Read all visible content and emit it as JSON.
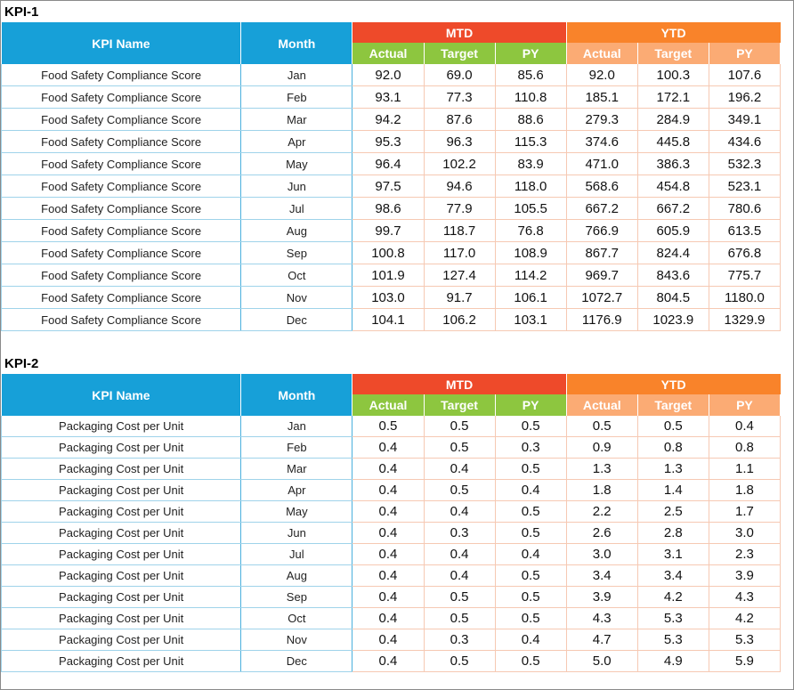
{
  "kpis": [
    {
      "title": "KPI-1",
      "headers": {
        "kpi_name": "KPI Name",
        "month": "Month",
        "mtd": "MTD",
        "ytd": "YTD",
        "actual": "Actual",
        "target": "Target",
        "py": "PY"
      },
      "rows": [
        {
          "name": "Food Safety Compliance Score",
          "month": "Jan",
          "mtd_actual": "92.0",
          "mtd_target": "69.0",
          "mtd_py": "85.6",
          "ytd_actual": "92.0",
          "ytd_target": "100.3",
          "ytd_py": "107.6"
        },
        {
          "name": "Food Safety Compliance Score",
          "month": "Feb",
          "mtd_actual": "93.1",
          "mtd_target": "77.3",
          "mtd_py": "110.8",
          "ytd_actual": "185.1",
          "ytd_target": "172.1",
          "ytd_py": "196.2"
        },
        {
          "name": "Food Safety Compliance Score",
          "month": "Mar",
          "mtd_actual": "94.2",
          "mtd_target": "87.6",
          "mtd_py": "88.6",
          "ytd_actual": "279.3",
          "ytd_target": "284.9",
          "ytd_py": "349.1"
        },
        {
          "name": "Food Safety Compliance Score",
          "month": "Apr",
          "mtd_actual": "95.3",
          "mtd_target": "96.3",
          "mtd_py": "115.3",
          "ytd_actual": "374.6",
          "ytd_target": "445.8",
          "ytd_py": "434.6"
        },
        {
          "name": "Food Safety Compliance Score",
          "month": "May",
          "mtd_actual": "96.4",
          "mtd_target": "102.2",
          "mtd_py": "83.9",
          "ytd_actual": "471.0",
          "ytd_target": "386.3",
          "ytd_py": "532.3"
        },
        {
          "name": "Food Safety Compliance Score",
          "month": "Jun",
          "mtd_actual": "97.5",
          "mtd_target": "94.6",
          "mtd_py": "118.0",
          "ytd_actual": "568.6",
          "ytd_target": "454.8",
          "ytd_py": "523.1"
        },
        {
          "name": "Food Safety Compliance Score",
          "month": "Jul",
          "mtd_actual": "98.6",
          "mtd_target": "77.9",
          "mtd_py": "105.5",
          "ytd_actual": "667.2",
          "ytd_target": "667.2",
          "ytd_py": "780.6"
        },
        {
          "name": "Food Safety Compliance Score",
          "month": "Aug",
          "mtd_actual": "99.7",
          "mtd_target": "118.7",
          "mtd_py": "76.8",
          "ytd_actual": "766.9",
          "ytd_target": "605.9",
          "ytd_py": "613.5"
        },
        {
          "name": "Food Safety Compliance Score",
          "month": "Sep",
          "mtd_actual": "100.8",
          "mtd_target": "117.0",
          "mtd_py": "108.9",
          "ytd_actual": "867.7",
          "ytd_target": "824.4",
          "ytd_py": "676.8"
        },
        {
          "name": "Food Safety Compliance Score",
          "month": "Oct",
          "mtd_actual": "101.9",
          "mtd_target": "127.4",
          "mtd_py": "114.2",
          "ytd_actual": "969.7",
          "ytd_target": "843.6",
          "ytd_py": "775.7"
        },
        {
          "name": "Food Safety Compliance Score",
          "month": "Nov",
          "mtd_actual": "103.0",
          "mtd_target": "91.7",
          "mtd_py": "106.1",
          "ytd_actual": "1072.7",
          "ytd_target": "804.5",
          "ytd_py": "1180.0"
        },
        {
          "name": "Food Safety Compliance Score",
          "month": "Dec",
          "mtd_actual": "104.1",
          "mtd_target": "106.2",
          "mtd_py": "103.1",
          "ytd_actual": "1176.9",
          "ytd_target": "1023.9",
          "ytd_py": "1329.9"
        }
      ]
    },
    {
      "title": "KPI-2",
      "headers": {
        "kpi_name": "KPI Name",
        "month": "Month",
        "mtd": "MTD",
        "ytd": "YTD",
        "actual": "Actual",
        "target": "Target",
        "py": "PY"
      },
      "rows": [
        {
          "name": "Packaging Cost per Unit",
          "month": "Jan",
          "mtd_actual": "0.5",
          "mtd_target": "0.5",
          "mtd_py": "0.5",
          "ytd_actual": "0.5",
          "ytd_target": "0.5",
          "ytd_py": "0.4"
        },
        {
          "name": "Packaging Cost per Unit",
          "month": "Feb",
          "mtd_actual": "0.4",
          "mtd_target": "0.5",
          "mtd_py": "0.3",
          "ytd_actual": "0.9",
          "ytd_target": "0.8",
          "ytd_py": "0.8"
        },
        {
          "name": "Packaging Cost per Unit",
          "month": "Mar",
          "mtd_actual": "0.4",
          "mtd_target": "0.4",
          "mtd_py": "0.5",
          "ytd_actual": "1.3",
          "ytd_target": "1.3",
          "ytd_py": "1.1"
        },
        {
          "name": "Packaging Cost per Unit",
          "month": "Apr",
          "mtd_actual": "0.4",
          "mtd_target": "0.5",
          "mtd_py": "0.4",
          "ytd_actual": "1.8",
          "ytd_target": "1.4",
          "ytd_py": "1.8"
        },
        {
          "name": "Packaging Cost per Unit",
          "month": "May",
          "mtd_actual": "0.4",
          "mtd_target": "0.4",
          "mtd_py": "0.5",
          "ytd_actual": "2.2",
          "ytd_target": "2.5",
          "ytd_py": "1.7"
        },
        {
          "name": "Packaging Cost per Unit",
          "month": "Jun",
          "mtd_actual": "0.4",
          "mtd_target": "0.3",
          "mtd_py": "0.5",
          "ytd_actual": "2.6",
          "ytd_target": "2.8",
          "ytd_py": "3.0"
        },
        {
          "name": "Packaging Cost per Unit",
          "month": "Jul",
          "mtd_actual": "0.4",
          "mtd_target": "0.4",
          "mtd_py": "0.4",
          "ytd_actual": "3.0",
          "ytd_target": "3.1",
          "ytd_py": "2.3"
        },
        {
          "name": "Packaging Cost per Unit",
          "month": "Aug",
          "mtd_actual": "0.4",
          "mtd_target": "0.4",
          "mtd_py": "0.5",
          "ytd_actual": "3.4",
          "ytd_target": "3.4",
          "ytd_py": "3.9"
        },
        {
          "name": "Packaging Cost per Unit",
          "month": "Sep",
          "mtd_actual": "0.4",
          "mtd_target": "0.5",
          "mtd_py": "0.5",
          "ytd_actual": "3.9",
          "ytd_target": "4.2",
          "ytd_py": "4.3"
        },
        {
          "name": "Packaging Cost per Unit",
          "month": "Oct",
          "mtd_actual": "0.4",
          "mtd_target": "0.5",
          "mtd_py": "0.5",
          "ytd_actual": "4.3",
          "ytd_target": "5.3",
          "ytd_py": "4.2"
        },
        {
          "name": "Packaging Cost per Unit",
          "month": "Nov",
          "mtd_actual": "0.4",
          "mtd_target": "0.3",
          "mtd_py": "0.4",
          "ytd_actual": "4.7",
          "ytd_target": "5.3",
          "ytd_py": "5.3"
        },
        {
          "name": "Packaging Cost per Unit",
          "month": "Dec",
          "mtd_actual": "0.4",
          "mtd_target": "0.5",
          "mtd_py": "0.5",
          "ytd_actual": "5.0",
          "ytd_target": "4.9",
          "ytd_py": "5.9"
        }
      ]
    }
  ],
  "colors": {
    "header_blue": "#17a0d8",
    "mtd_red": "#ee4a2a",
    "ytd_orange": "#f9832a",
    "mtd_sub_green": "#8dc63f",
    "ytd_sub_peach": "#fbab74"
  }
}
